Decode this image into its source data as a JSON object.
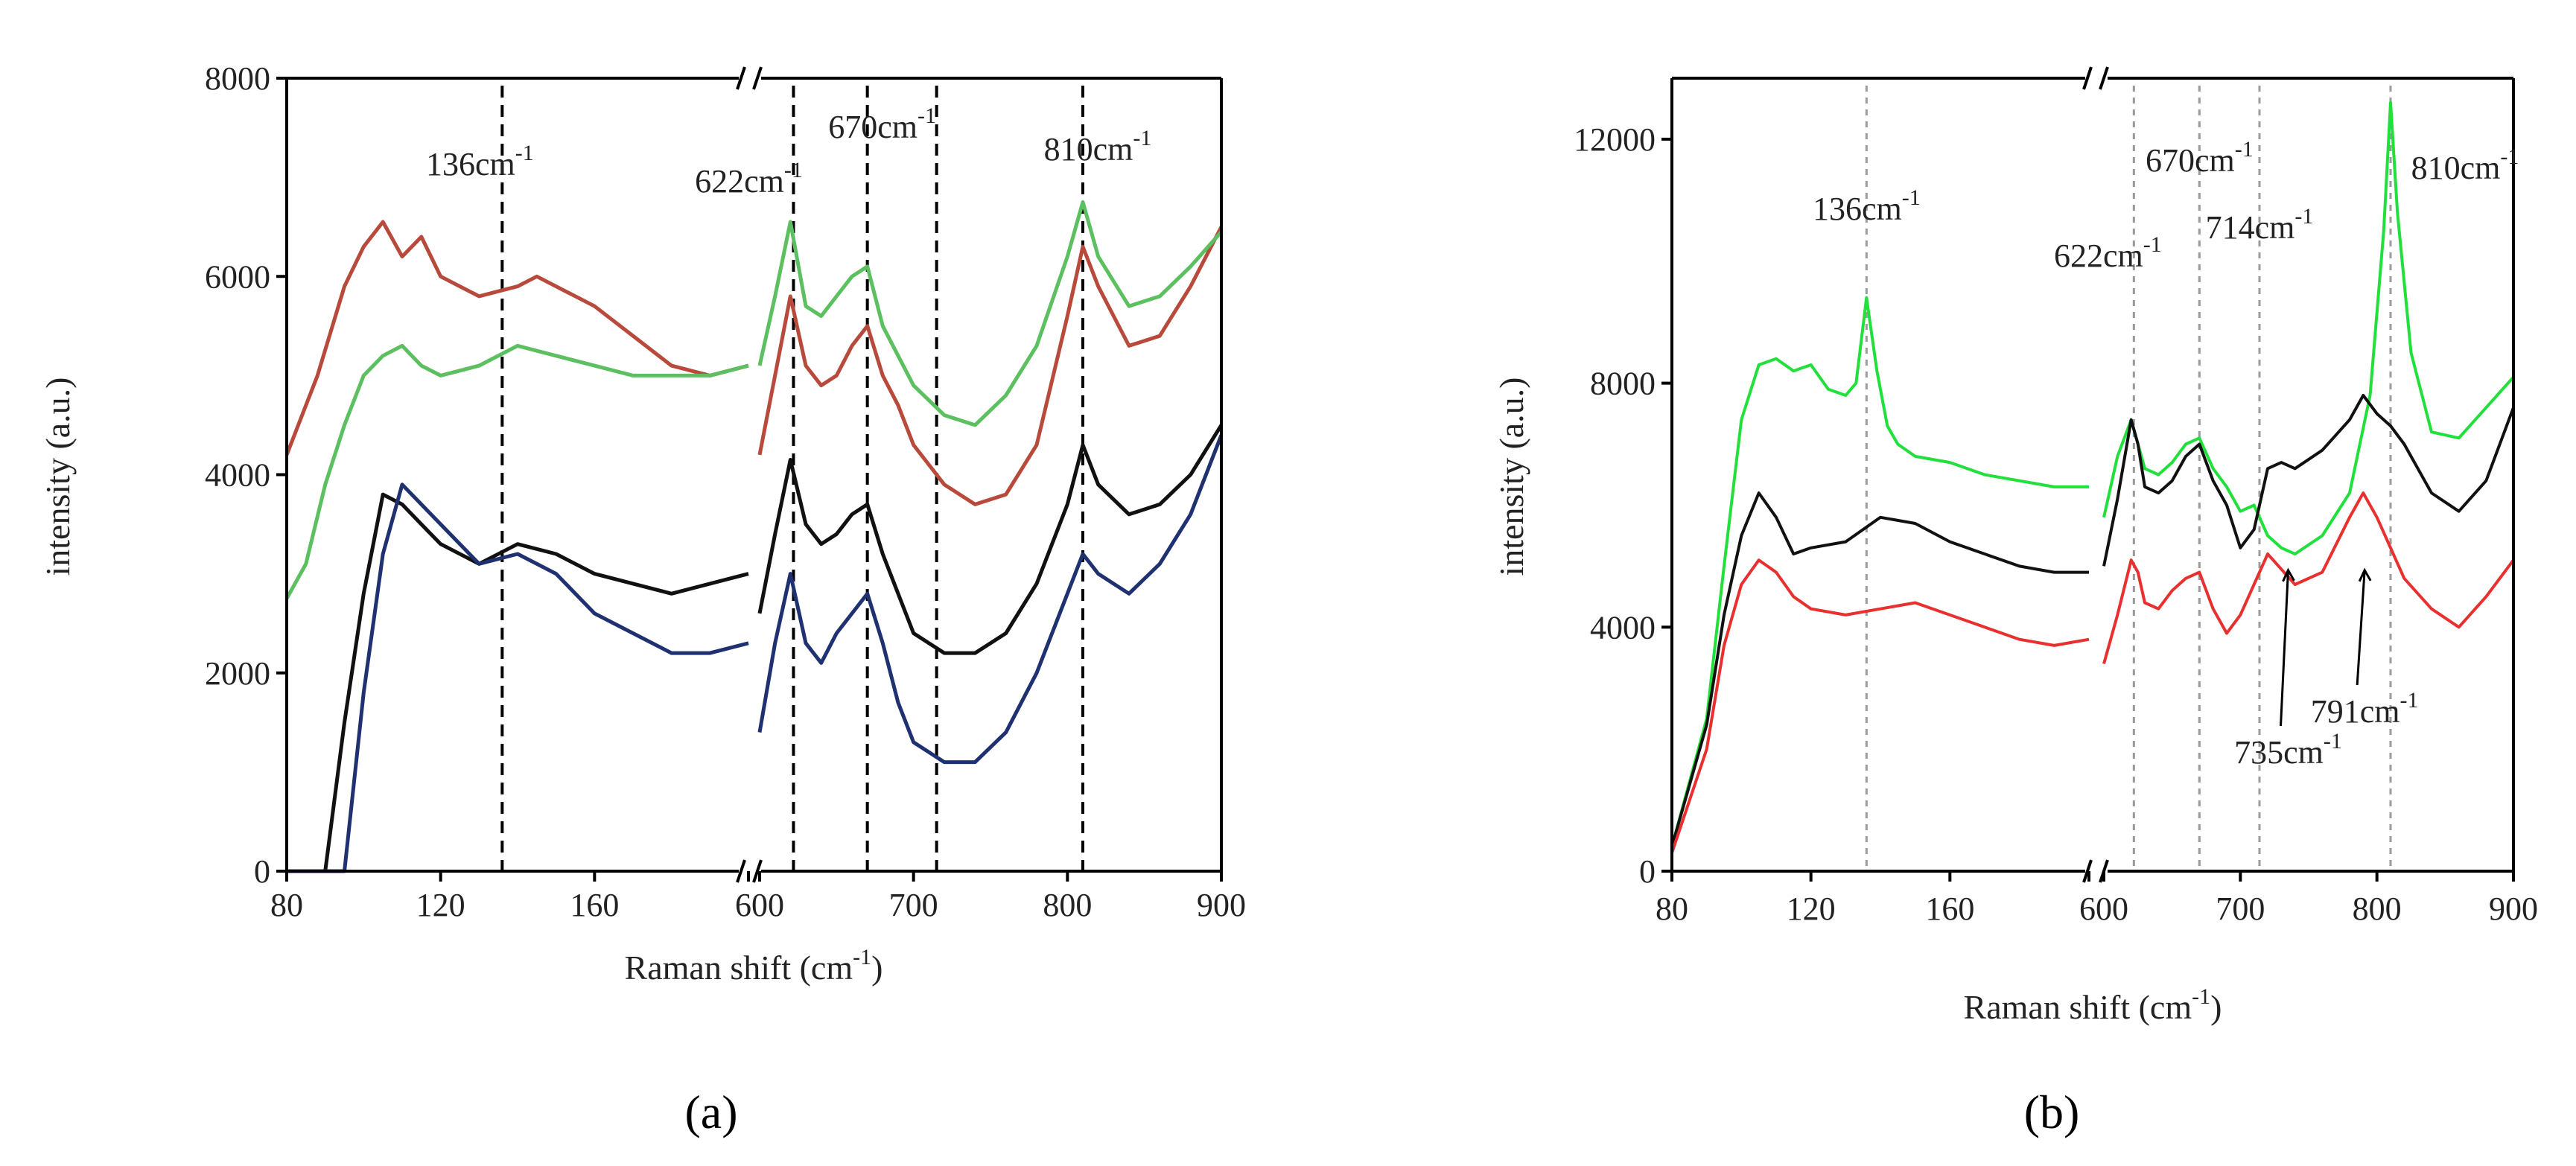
{
  "panel_labels": [
    "(a)",
    "(b)"
  ],
  "chart_data": [
    {
      "type": "line",
      "panel": "(a)",
      "xlabel": "Raman shift (cm",
      "xlabel_sup": "-1",
      "xlabel_end": ")",
      "ylabel": "intensity (a.u.)",
      "ylim": [
        0,
        8000
      ],
      "yticks": [
        "0",
        "2000",
        "4000",
        "6000",
        "8000"
      ],
      "broken_axis": true,
      "segments": [
        {
          "xlim": [
            80,
            200
          ],
          "xticks": [
            "80",
            "120",
            "160"
          ]
        },
        {
          "xlim": [
            600,
            900
          ],
          "xticks": [
            "600",
            "700",
            "800",
            "900"
          ]
        }
      ],
      "annotations": [
        {
          "text": "136cm",
          "sup": "-1",
          "x": 136
        },
        {
          "text": "622cm",
          "sup": "-1",
          "x": 622
        },
        {
          "text": "670cm",
          "sup": "-1",
          "x": 670
        },
        {
          "text": "810cm",
          "sup": "-1",
          "x": 810
        }
      ],
      "reference_lines": [
        136,
        622,
        670,
        715,
        810
      ],
      "series": [
        {
          "name": "red",
          "color": "#b84a3c",
          "x": [
            80,
            88,
            95,
            100,
            105,
            110,
            115,
            120,
            125,
            130,
            135,
            140,
            145,
            150,
            160,
            170,
            180,
            190,
            200,
            600,
            610,
            620,
            630,
            640,
            650,
            660,
            670,
            680,
            690,
            700,
            720,
            740,
            760,
            780,
            800,
            810,
            820,
            840,
            860,
            880,
            900
          ],
          "values": [
            4200,
            5000,
            5900,
            6300,
            6550,
            6200,
            6400,
            6000,
            5900,
            5800,
            5850,
            5900,
            6000,
            5900,
            5700,
            5400,
            5100,
            5000,
            5100,
            4200,
            5000,
            5800,
            5100,
            4900,
            5000,
            5300,
            5500,
            5000,
            4700,
            4300,
            3900,
            3700,
            3800,
            4300,
            5600,
            6300,
            5900,
            5300,
            5400,
            5900,
            6500
          ]
        },
        {
          "name": "green",
          "color": "#5cc060",
          "x": [
            80,
            85,
            90,
            95,
            100,
            105,
            110,
            115,
            120,
            130,
            140,
            150,
            160,
            170,
            180,
            190,
            200,
            600,
            610,
            620,
            630,
            640,
            650,
            660,
            670,
            680,
            690,
            700,
            720,
            740,
            760,
            780,
            800,
            810,
            820,
            840,
            860,
            880,
            900
          ],
          "values": [
            2750,
            3100,
            3900,
            4500,
            5000,
            5200,
            5300,
            5100,
            5000,
            5100,
            5300,
            5200,
            5100,
            5000,
            5000,
            5000,
            5100,
            5100,
            5800,
            6550,
            5700,
            5600,
            5800,
            6000,
            6100,
            5500,
            5200,
            4900,
            4600,
            4500,
            4800,
            5300,
            6200,
            6750,
            6200,
            5700,
            5800,
            6100,
            6450
          ]
        },
        {
          "name": "black",
          "color": "#111111",
          "x": [
            80,
            90,
            95,
            100,
            105,
            110,
            115,
            120,
            130,
            140,
            150,
            160,
            170,
            180,
            190,
            200,
            600,
            610,
            620,
            630,
            640,
            650,
            660,
            670,
            680,
            690,
            700,
            720,
            740,
            760,
            780,
            800,
            810,
            820,
            840,
            860,
            880,
            900
          ],
          "values": [
            0,
            0,
            1500,
            2800,
            3800,
            3700,
            3500,
            3300,
            3100,
            3300,
            3200,
            3000,
            2900,
            2800,
            2900,
            3000,
            2600,
            3400,
            4150,
            3500,
            3300,
            3400,
            3600,
            3700,
            3200,
            2800,
            2400,
            2200,
            2200,
            2400,
            2900,
            3700,
            4300,
            3900,
            3600,
            3700,
            4000,
            4500
          ]
        },
        {
          "name": "blue",
          "color": "#1f3170",
          "x": [
            80,
            95,
            100,
            105,
            110,
            115,
            120,
            130,
            140,
            150,
            160,
            170,
            180,
            190,
            200,
            600,
            610,
            620,
            630,
            640,
            650,
            660,
            670,
            680,
            690,
            700,
            720,
            740,
            760,
            780,
            800,
            810,
            820,
            840,
            860,
            880,
            900
          ],
          "values": [
            0,
            0,
            1800,
            3200,
            3900,
            3700,
            3500,
            3100,
            3200,
            3000,
            2600,
            2400,
            2200,
            2200,
            2300,
            1400,
            2300,
            3000,
            2300,
            2100,
            2400,
            2600,
            2800,
            2300,
            1700,
            1300,
            1100,
            1100,
            1400,
            2000,
            2800,
            3200,
            3000,
            2800,
            3100,
            3600,
            4400
          ]
        }
      ]
    },
    {
      "type": "line",
      "panel": "(b)",
      "xlabel": "Raman shift (cm",
      "xlabel_sup": "-1",
      "xlabel_end": ")",
      "ylabel": "intensity (a.u.)",
      "ylim": [
        0,
        13000
      ],
      "yticks": [
        "0",
        "4000",
        "8000",
        "12000"
      ],
      "broken_axis": true,
      "segments": [
        {
          "xlim": [
            80,
            200
          ],
          "xticks": [
            "80",
            "120",
            "160"
          ]
        },
        {
          "xlim": [
            600,
            900
          ],
          "xticks": [
            "600",
            "700",
            "800",
            "900"
          ]
        }
      ],
      "annotations": [
        {
          "text": "136cm",
          "sup": "-1",
          "x": 136
        },
        {
          "text": "622cm",
          "sup": "-1",
          "x": 622
        },
        {
          "text": "670cm",
          "sup": "-1",
          "x": 670
        },
        {
          "text": "714cm",
          "sup": "-1",
          "x": 714
        },
        {
          "text": "810cm",
          "sup": "-1",
          "x": 810
        },
        {
          "text": "735cm",
          "sup": "-1",
          "x": 735,
          "arrow": true
        },
        {
          "text": "791cm",
          "sup": "-1",
          "x": 791,
          "arrow": true
        }
      ],
      "reference_lines": [
        136,
        622,
        670,
        714,
        810
      ],
      "series": [
        {
          "name": "green",
          "color": "#22e03c",
          "x": [
            80,
            90,
            95,
            100,
            105,
            110,
            115,
            120,
            125,
            130,
            133,
            136,
            139,
            142,
            145,
            150,
            160,
            170,
            180,
            190,
            200,
            600,
            610,
            620,
            625,
            630,
            640,
            650,
            660,
            670,
            680,
            690,
            700,
            710,
            720,
            730,
            740,
            760,
            780,
            795,
            805,
            810,
            815,
            825,
            840,
            860,
            880,
            900
          ],
          "values": [
            400,
            2500,
            5000,
            7400,
            8300,
            8400,
            8200,
            8300,
            7900,
            7800,
            8000,
            9400,
            8200,
            7300,
            7000,
            6800,
            6700,
            6500,
            6400,
            6300,
            6300,
            5800,
            6800,
            7400,
            7000,
            6600,
            6500,
            6700,
            7000,
            7100,
            6600,
            6300,
            5900,
            6000,
            5500,
            5300,
            5200,
            5500,
            6200,
            7800,
            10500,
            12600,
            10800,
            8500,
            7200,
            7100,
            7600,
            8100
          ]
        },
        {
          "name": "black",
          "color": "#111111",
          "x": [
            80,
            90,
            95,
            100,
            105,
            110,
            115,
            120,
            130,
            140,
            150,
            160,
            170,
            180,
            190,
            200,
            600,
            610,
            620,
            625,
            630,
            640,
            650,
            660,
            670,
            680,
            690,
            700,
            710,
            720,
            730,
            740,
            760,
            780,
            790,
            800,
            810,
            820,
            840,
            860,
            880,
            900
          ],
          "values": [
            400,
            2400,
            4200,
            5500,
            6200,
            5800,
            5200,
            5300,
            5400,
            5800,
            5700,
            5400,
            5200,
            5000,
            4900,
            4900,
            5000,
            6100,
            7400,
            7000,
            6300,
            6200,
            6400,
            6800,
            7000,
            6400,
            6000,
            5300,
            5600,
            6600,
            6700,
            6600,
            6900,
            7400,
            7800,
            7500,
            7300,
            7000,
            6200,
            5900,
            6400,
            7600
          ]
        },
        {
          "name": "red",
          "color": "#e8312f",
          "x": [
            80,
            90,
            95,
            100,
            105,
            110,
            115,
            120,
            130,
            140,
            150,
            160,
            170,
            180,
            190,
            200,
            600,
            610,
            620,
            625,
            630,
            640,
            650,
            660,
            670,
            680,
            690,
            700,
            720,
            740,
            760,
            780,
            790,
            800,
            810,
            820,
            840,
            860,
            880,
            900
          ],
          "values": [
            300,
            2000,
            3700,
            4700,
            5100,
            4900,
            4500,
            4300,
            4200,
            4300,
            4400,
            4200,
            4000,
            3800,
            3700,
            3800,
            3400,
            4200,
            5100,
            4900,
            4400,
            4300,
            4600,
            4800,
            4900,
            4300,
            3900,
            4200,
            5200,
            4700,
            4900,
            5800,
            6200,
            5800,
            5300,
            4800,
            4300,
            4000,
            4500,
            5100
          ]
        }
      ]
    }
  ]
}
